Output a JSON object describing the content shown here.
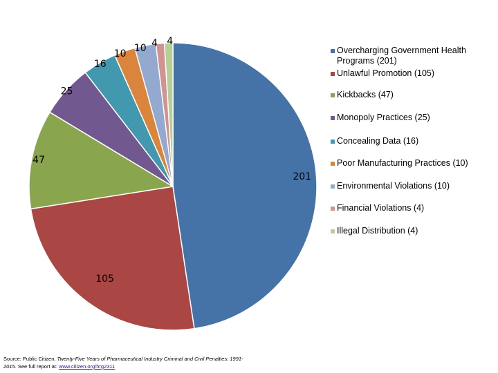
{
  "chart_data": {
    "type": "pie",
    "title": "",
    "start_angle_deg": 0,
    "direction": "clockwise",
    "legend_position": "right",
    "slices": [
      {
        "name": "Overcharging Government Health Programs (201)",
        "value": 201,
        "label": "201",
        "color": "#4572a7"
      },
      {
        "name": "Unlawful Promotion (105)",
        "value": 105,
        "label": "105",
        "color": "#aa4643"
      },
      {
        "name": "Kickbacks (47)",
        "value": 47,
        "label": "47",
        "color": "#89a54e"
      },
      {
        "name": "Monopoly Practices (25)",
        "value": 25,
        "label": "25",
        "color": "#71588f"
      },
      {
        "name": "Concealing Data (16)",
        "value": 16,
        "label": "16",
        "color": "#4198af"
      },
      {
        "name": "Poor Manufacturing Practices (10)",
        "value": 10,
        "label": "10",
        "color": "#db843d"
      },
      {
        "name": "Environmental Violations (10)",
        "value": 10,
        "label": "10",
        "color": "#93a9cf"
      },
      {
        "name": "Financial Violations (4)",
        "value": 4,
        "label": "4",
        "color": "#d19392"
      },
      {
        "name": "Illegal Distribution (4)",
        "value": 4,
        "label": "4",
        "color": "#b9cd96"
      }
    ]
  },
  "source": {
    "prefix": "Source: Public Citizen, ",
    "title": "Twenty-Five Years of Pharmaceutical Industry Criminal and Civil Penalties: 1991-2015",
    "middle": ". See full report at: ",
    "link": "www.citizen.org/hrg2311"
  }
}
